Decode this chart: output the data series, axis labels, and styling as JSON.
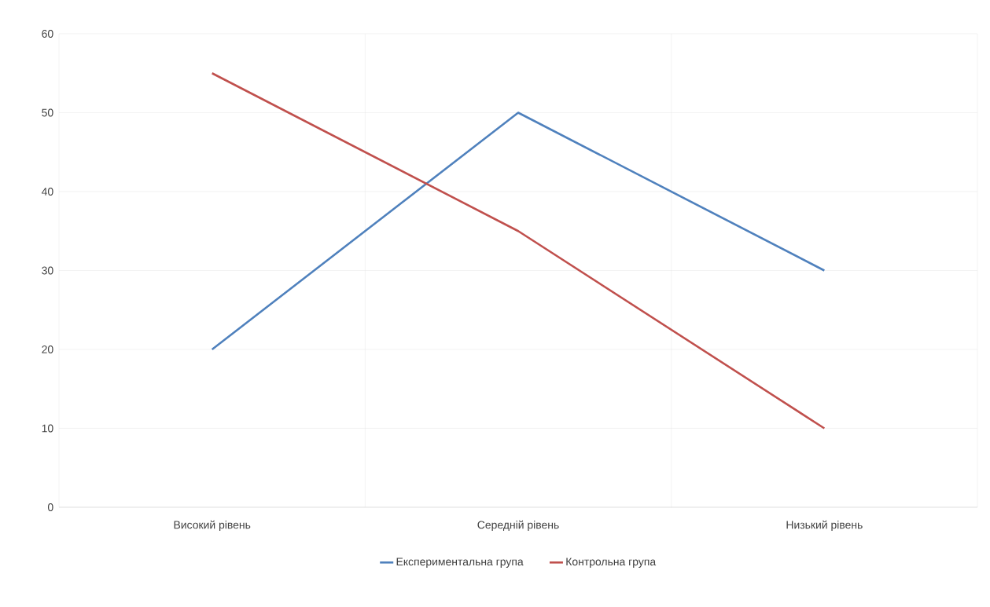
{
  "chart_data": {
    "type": "line",
    "categories": [
      "Високий рівень",
      "Середній рівень",
      "Низький рівень"
    ],
    "series": [
      {
        "name": "Експериментальна група",
        "color": "#4f81bd",
        "values": [
          20,
          50,
          30
        ]
      },
      {
        "name": "Контрольна група",
        "color": "#c0504d",
        "values": [
          55,
          35,
          10
        ]
      }
    ],
    "ylim": [
      0,
      60
    ],
    "yticks": [
      0,
      10,
      20,
      30,
      40,
      50,
      60
    ],
    "grid": true,
    "legend": "bottom",
    "marker": "none",
    "line_style": "solid"
  }
}
